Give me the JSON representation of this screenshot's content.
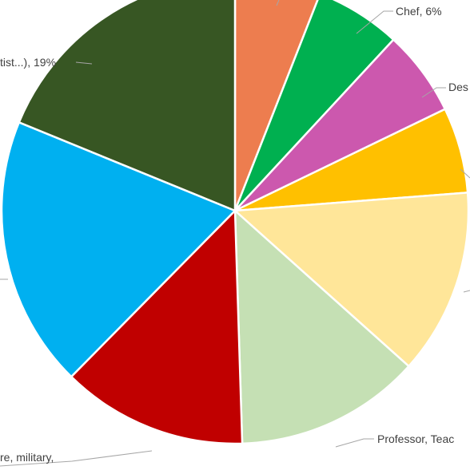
{
  "chart_data": {
    "type": "pie",
    "title": "",
    "start_angle_deg": 0,
    "direction": "clockwise",
    "legend": "none",
    "slices": [
      {
        "label": "",
        "value": 6,
        "color": "#ED7D4F",
        "label_text": ""
      },
      {
        "label": "Chef",
        "value": 6,
        "color": "#00B050",
        "label_text": "Chef, 6%"
      },
      {
        "label": "Des",
        "value": 6,
        "color": "#CC58AE",
        "label_text": "Des"
      },
      {
        "label": "",
        "value": 6,
        "color": "#FFC000",
        "label_text": ""
      },
      {
        "label": "",
        "value": 13,
        "color": "#FFE699",
        "label_text": ""
      },
      {
        "label": "Professor, Teac",
        "value": 13,
        "color": "#C5E0B4",
        "label_text": "Professor, Teac"
      },
      {
        "label": "re, military,",
        "value": 13,
        "color": "#C00000",
        "label_text": "re, military,"
      },
      {
        "label": "",
        "value": 19,
        "color": "#00B0F0",
        "label_text": ""
      },
      {
        "label": "tist...)",
        "value": 19,
        "color": "#375623",
        "label_text": "tist...), 19%"
      }
    ]
  }
}
